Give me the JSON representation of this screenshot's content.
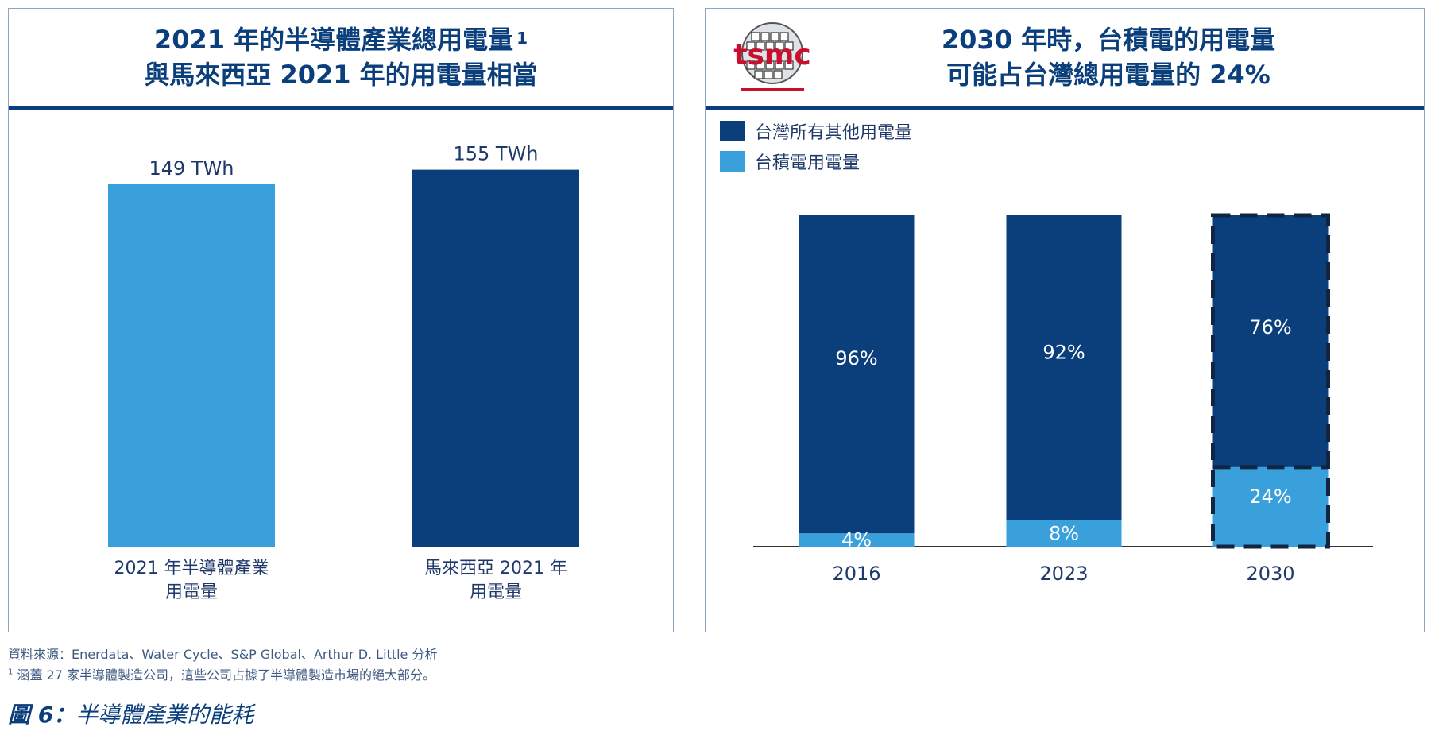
{
  "colors": {
    "dark_navy": "#0b3f7c",
    "light_blue": "#3aa0dc",
    "axis": "#333333",
    "white": "#ffffff"
  },
  "left_panel": {
    "title_line1": "2021 年的半導體產業總用電量",
    "title_sup": "1",
    "title_line2": "與馬來西亞 2021 年的用電量相當"
  },
  "right_panel": {
    "logo_text": "tsmc",
    "title_line1": "2030 年時，台積電的用電量",
    "title_line2": "可能占台灣總用電量的 24%",
    "legend": [
      {
        "label": "台灣所有其他用電量",
        "color": "#0b3f7c"
      },
      {
        "label": "台積電用電量",
        "color": "#3aa0dc"
      }
    ]
  },
  "chart_data": [
    {
      "type": "bar",
      "title": "2021 年的半導體產業總用電量 1 與馬來西亞 2021 年的用電量相當",
      "categories": [
        [
          "2021 年半導體產業",
          "用電量"
        ],
        [
          "馬來西亞 2021 年",
          "用電量"
        ]
      ],
      "values": [
        149,
        155
      ],
      "value_labels": [
        "149 TWh",
        "155 TWh"
      ],
      "unit": "TWh",
      "colors": [
        "#3aa0dc",
        "#0b3f7c"
      ],
      "ylim": [
        0,
        165
      ],
      "grid": false
    },
    {
      "type": "bar",
      "stacked": true,
      "percent": true,
      "title": "2030 年時，台積電的用電量 可能占台灣總用電量的 24%",
      "categories": [
        "2016",
        "2023",
        "2030"
      ],
      "series": [
        {
          "name": "台積電用電量",
          "values": [
            4,
            8,
            24
          ],
          "labels": [
            "4%",
            "8%",
            "24%"
          ],
          "color": "#3aa0dc"
        },
        {
          "name": "台灣所有其他用電量",
          "values": [
            96,
            92,
            76
          ],
          "labels": [
            "96%",
            "92%",
            "76%"
          ],
          "color": "#0b3f7c"
        }
      ],
      "projected": [
        "2030"
      ],
      "ylim": [
        0,
        100
      ],
      "legend": "top-left",
      "grid": false
    }
  ],
  "footer": {
    "source": "資料來源：Enerdata、Water Cycle、S&P Global、Arthur D. Little 分析",
    "note_marker": "1",
    "note": "涵蓋 27 家半導體製造公司，這些公司占據了半導體製造市場的絕大部分。",
    "caption_label": "圖 6：",
    "caption_text": "半導體產業的能耗"
  }
}
